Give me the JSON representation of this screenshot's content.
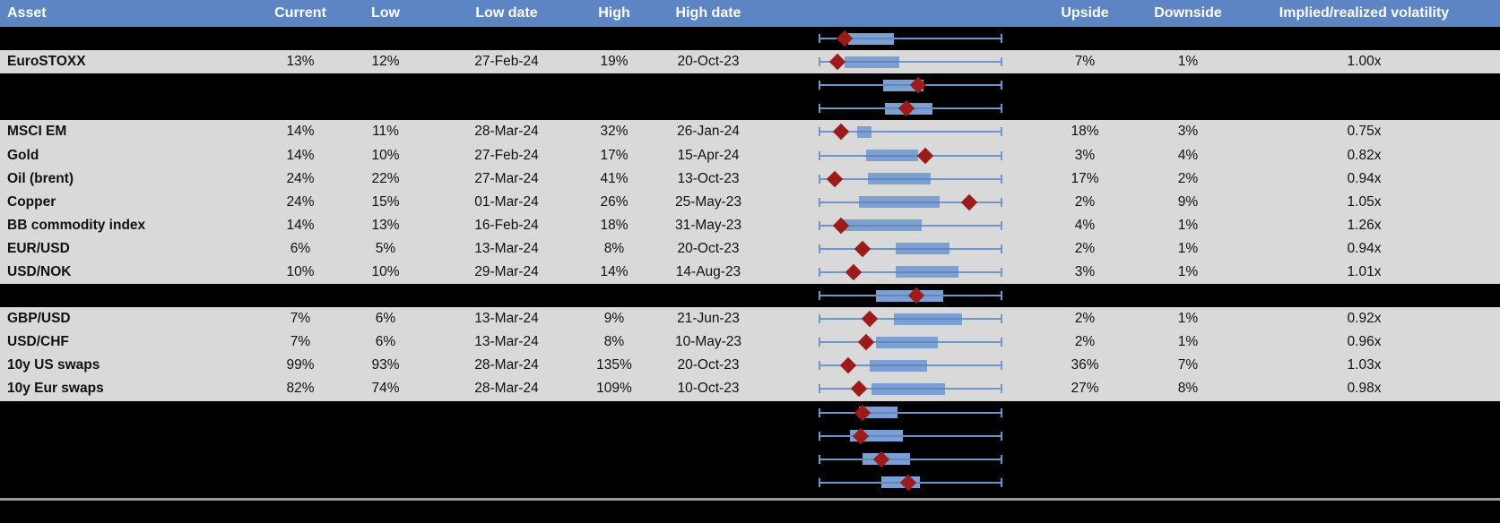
{
  "header": {
    "labels": [
      "Asset",
      "Current",
      "Low",
      "Low date",
      "High",
      "High date",
      "",
      "Upside",
      "Downside",
      "Implied/realized volatility"
    ]
  },
  "colors": {
    "header_bg": "#5d85c3",
    "row_bg": "#d9d9d9",
    "hidden_bg": "#000000",
    "whisker": "#6e96cc",
    "box": "#7ba1d4",
    "box_line": "#6286bd",
    "marker": "#9e1b1c",
    "divider": "#9b9b9b"
  },
  "rows": [
    {
      "type": "hidden",
      "boxplot": {
        "box_lo": 0.16,
        "box_hi": 0.41,
        "marker": 0.14
      }
    },
    {
      "type": "data",
      "asset": "EuroSTOXX",
      "current": "13%",
      "low": "12%",
      "low_date": "27-Feb-24",
      "high": "19%",
      "high_date": "20-Oct-23",
      "upside": "7%",
      "downside": "1%",
      "implied_realized": "1.00x",
      "boxplot": {
        "box_lo": 0.14,
        "box_hi": 0.44,
        "marker": 0.1
      }
    },
    {
      "type": "hidden",
      "boxplot": {
        "box_lo": 0.35,
        "box_hi": 0.57,
        "marker": 0.54
      }
    },
    {
      "type": "hidden",
      "boxplot": {
        "box_lo": 0.36,
        "box_hi": 0.62,
        "marker": 0.48
      }
    },
    {
      "type": "data",
      "asset": "MSCI EM",
      "current": "14%",
      "low": "11%",
      "low_date": "28-Mar-24",
      "high": "32%",
      "high_date": "26-Jan-24",
      "upside": "18%",
      "downside": "3%",
      "implied_realized": "0.75x",
      "boxplot": {
        "box_lo": 0.21,
        "box_hi": 0.29,
        "marker": 0.12
      }
    },
    {
      "type": "data",
      "asset": "Gold",
      "current": "14%",
      "low": "10%",
      "low_date": "27-Feb-24",
      "high": "17%",
      "high_date": "15-Apr-24",
      "upside": "3%",
      "downside": "4%",
      "implied_realized": "0.82x",
      "boxplot": {
        "box_lo": 0.26,
        "box_hi": 0.54,
        "marker": 0.58
      }
    },
    {
      "type": "data",
      "asset": "Oil (brent)",
      "current": "24%",
      "low": "22%",
      "low_date": "27-Mar-24",
      "high": "41%",
      "high_date": "13-Oct-23",
      "upside": "17%",
      "downside": "2%",
      "implied_realized": "0.94x",
      "boxplot": {
        "box_lo": 0.27,
        "box_hi": 0.61,
        "marker": 0.09
      }
    },
    {
      "type": "data",
      "asset": "Copper",
      "current": "24%",
      "low": "15%",
      "low_date": "01-Mar-24",
      "high": "26%",
      "high_date": "25-May-23",
      "upside": "2%",
      "downside": "9%",
      "implied_realized": "1.05x",
      "boxplot": {
        "box_lo": 0.22,
        "box_hi": 0.66,
        "marker": 0.82
      }
    },
    {
      "type": "data",
      "asset": "BB commodity index",
      "current": "14%",
      "low": "13%",
      "low_date": "16-Feb-24",
      "high": "18%",
      "high_date": "31-May-23",
      "upside": "4%",
      "downside": "1%",
      "implied_realized": "1.26x",
      "boxplot": {
        "box_lo": 0.12,
        "box_hi": 0.56,
        "marker": 0.12
      }
    },
    {
      "type": "data",
      "asset": "EUR/USD",
      "current": "6%",
      "low": "5%",
      "low_date": "13-Mar-24",
      "high": "8%",
      "high_date": "20-Oct-23",
      "upside": "2%",
      "downside": "1%",
      "implied_realized": "0.94x",
      "boxplot": {
        "box_lo": 0.42,
        "box_hi": 0.71,
        "marker": 0.24
      }
    },
    {
      "type": "data",
      "asset": "USD/NOK",
      "current": "10%",
      "low": "10%",
      "low_date": "29-Mar-24",
      "high": "14%",
      "high_date": "14-Aug-23",
      "upside": "3%",
      "downside": "1%",
      "implied_realized": "1.01x",
      "boxplot": {
        "box_lo": 0.42,
        "box_hi": 0.76,
        "marker": 0.19
      }
    },
    {
      "type": "hidden",
      "boxplot": {
        "box_lo": 0.31,
        "box_hi": 0.68,
        "marker": 0.53
      }
    },
    {
      "type": "data",
      "asset": "GBP/USD",
      "current": "7%",
      "low": "6%",
      "low_date": "13-Mar-24",
      "high": "9%",
      "high_date": "21-Jun-23",
      "upside": "2%",
      "downside": "1%",
      "implied_realized": "0.92x",
      "boxplot": {
        "box_lo": 0.41,
        "box_hi": 0.78,
        "marker": 0.28
      }
    },
    {
      "type": "data",
      "asset": "USD/CHF",
      "current": "7%",
      "low": "6%",
      "low_date": "13-Mar-24",
      "high": "8%",
      "high_date": "10-May-23",
      "upside": "2%",
      "downside": "1%",
      "implied_realized": "0.96x",
      "boxplot": {
        "box_lo": 0.31,
        "box_hi": 0.65,
        "marker": 0.26
      }
    },
    {
      "type": "data",
      "asset": "10y US swaps",
      "current": "99%",
      "low": "93%",
      "low_date": "28-Mar-24",
      "high": "135%",
      "high_date": "20-Oct-23",
      "upside": "36%",
      "downside": "7%",
      "implied_realized": "1.03x",
      "boxplot": {
        "box_lo": 0.28,
        "box_hi": 0.59,
        "marker": 0.16
      }
    },
    {
      "type": "data",
      "asset": "10y Eur swaps",
      "current": "82%",
      "low": "74%",
      "low_date": "28-Mar-24",
      "high": "109%",
      "high_date": "10-Oct-23",
      "upside": "27%",
      "downside": "8%",
      "implied_realized": "0.98x",
      "boxplot": {
        "box_lo": 0.29,
        "box_hi": 0.69,
        "marker": 0.22
      }
    },
    {
      "type": "hidden",
      "boxplot": {
        "box_lo": 0.22,
        "box_hi": 0.43,
        "marker": 0.24
      }
    },
    {
      "type": "hidden",
      "boxplot": {
        "box_lo": 0.17,
        "box_hi": 0.46,
        "marker": 0.23
      }
    },
    {
      "type": "hidden",
      "boxplot": {
        "box_lo": 0.24,
        "box_hi": 0.5,
        "marker": 0.34
      }
    },
    {
      "type": "hidden",
      "boxplot": {
        "box_lo": 0.34,
        "box_hi": 0.55,
        "marker": 0.49
      }
    }
  ],
  "chart_data": {
    "type": "boxplot",
    "orientation": "horizontal",
    "normalized_range": [
      0,
      1
    ],
    "series": [
      {
        "name": "",
        "min": 0,
        "box_lo": 0.16,
        "box_hi": 0.41,
        "max": 1,
        "marker": 0.14
      },
      {
        "name": "EuroSTOXX",
        "min": 0,
        "box_lo": 0.14,
        "box_hi": 0.44,
        "max": 1,
        "marker": 0.1
      },
      {
        "name": "",
        "min": 0,
        "box_lo": 0.35,
        "box_hi": 0.57,
        "max": 1,
        "marker": 0.54
      },
      {
        "name": "",
        "min": 0,
        "box_lo": 0.36,
        "box_hi": 0.62,
        "max": 1,
        "marker": 0.48
      },
      {
        "name": "MSCI EM",
        "min": 0,
        "box_lo": 0.21,
        "box_hi": 0.29,
        "max": 1,
        "marker": 0.12
      },
      {
        "name": "Gold",
        "min": 0,
        "box_lo": 0.26,
        "box_hi": 0.54,
        "max": 1,
        "marker": 0.58
      },
      {
        "name": "Oil (brent)",
        "min": 0,
        "box_lo": 0.27,
        "box_hi": 0.61,
        "max": 1,
        "marker": 0.09
      },
      {
        "name": "Copper",
        "min": 0,
        "box_lo": 0.22,
        "box_hi": 0.66,
        "max": 1,
        "marker": 0.82
      },
      {
        "name": "BB commodity index",
        "min": 0,
        "box_lo": 0.12,
        "box_hi": 0.56,
        "max": 1,
        "marker": 0.12
      },
      {
        "name": "EUR/USD",
        "min": 0,
        "box_lo": 0.42,
        "box_hi": 0.71,
        "max": 1,
        "marker": 0.24
      },
      {
        "name": "USD/NOK",
        "min": 0,
        "box_lo": 0.42,
        "box_hi": 0.76,
        "max": 1,
        "marker": 0.19
      },
      {
        "name": "",
        "min": 0,
        "box_lo": 0.31,
        "box_hi": 0.68,
        "max": 1,
        "marker": 0.53
      },
      {
        "name": "GBP/USD",
        "min": 0,
        "box_lo": 0.41,
        "box_hi": 0.78,
        "max": 1,
        "marker": 0.28
      },
      {
        "name": "USD/CHF",
        "min": 0,
        "box_lo": 0.31,
        "box_hi": 0.65,
        "max": 1,
        "marker": 0.26
      },
      {
        "name": "10y US swaps",
        "min": 0,
        "box_lo": 0.28,
        "box_hi": 0.59,
        "max": 1,
        "marker": 0.16
      },
      {
        "name": "10y Eur swaps",
        "min": 0,
        "box_lo": 0.29,
        "box_hi": 0.69,
        "max": 1,
        "marker": 0.22
      },
      {
        "name": "",
        "min": 0,
        "box_lo": 0.22,
        "box_hi": 0.43,
        "max": 1,
        "marker": 0.24
      },
      {
        "name": "",
        "min": 0,
        "box_lo": 0.17,
        "box_hi": 0.46,
        "max": 1,
        "marker": 0.23
      },
      {
        "name": "",
        "min": 0,
        "box_lo": 0.24,
        "box_hi": 0.5,
        "max": 1,
        "marker": 0.34
      },
      {
        "name": "",
        "min": 0,
        "box_lo": 0.34,
        "box_hi": 0.55,
        "max": 1,
        "marker": 0.49
      }
    ]
  }
}
